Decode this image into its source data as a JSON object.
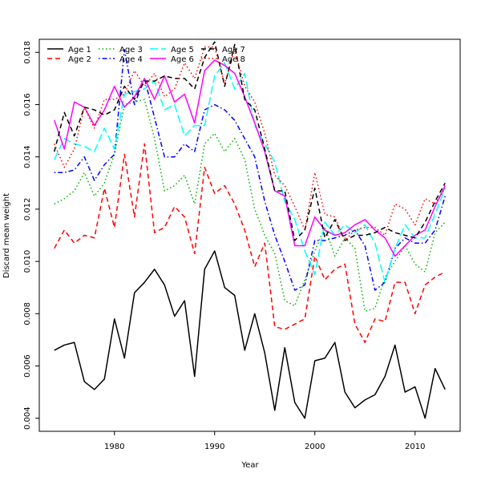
{
  "chart_data": {
    "type": "line",
    "title": "",
    "xlabel": "Year",
    "ylabel": "Discard mean weight",
    "xlim": [
      1972.5,
      2014.5
    ],
    "ylim": [
      0.0035,
      0.0185
    ],
    "x_ticks": [
      1980,
      1990,
      2000,
      2010
    ],
    "y_ticks": [
      0.004,
      0.006,
      0.008,
      0.01,
      0.012,
      0.014,
      0.016,
      0.018
    ],
    "y_tick_labels": [
      "0.004",
      "0.006",
      "0.008",
      "0.010",
      "0.012",
      "0.014",
      "0.016",
      "0.018"
    ],
    "grid": false,
    "legend_position": "top-left",
    "x": [
      1974,
      1975,
      1976,
      1977,
      1978,
      1979,
      1980,
      1981,
      1982,
      1983,
      1984,
      1985,
      1986,
      1987,
      1988,
      1989,
      1990,
      1991,
      1992,
      1993,
      1994,
      1995,
      1996,
      1997,
      1998,
      1999,
      2000,
      2001,
      2002,
      2003,
      2004,
      2005,
      2006,
      2007,
      2008,
      2009,
      2010,
      2011,
      2012,
      2013
    ],
    "series": [
      {
        "name": "Age 1",
        "color": "#000000",
        "dash": "solid",
        "width": 1.5,
        "values": [
          0.0066,
          0.0068,
          0.0069,
          0.0054,
          0.0051,
          0.0055,
          0.0078,
          0.0063,
          0.0088,
          0.0092,
          0.0097,
          0.0091,
          0.0079,
          0.0085,
          0.0056,
          0.0097,
          0.0104,
          0.009,
          0.0087,
          0.0066,
          0.008,
          0.0065,
          0.0043,
          0.0067,
          0.0046,
          0.004,
          0.0062,
          0.0063,
          0.0069,
          0.005,
          0.0044,
          0.0047,
          0.0049,
          0.0056,
          0.0068,
          0.005,
          0.0052,
          0.004,
          0.0059,
          0.0051
        ]
      },
      {
        "name": "Age 2",
        "color": "#ff0000",
        "dash": "dashed",
        "width": 1.5,
        "values": [
          0.0105,
          0.0112,
          0.0107,
          0.011,
          0.0109,
          0.0128,
          0.0113,
          0.0141,
          0.0117,
          0.0145,
          0.0111,
          0.0113,
          0.0121,
          0.0117,
          0.0103,
          0.0136,
          0.0126,
          0.0129,
          0.0122,
          0.0112,
          0.0098,
          0.0107,
          0.0075,
          0.0074,
          0.0076,
          0.0078,
          0.0102,
          0.0093,
          0.0097,
          0.0099,
          0.0076,
          0.0069,
          0.0078,
          0.0077,
          0.0092,
          0.0092,
          0.008,
          0.0091,
          0.0094,
          0.0096
        ]
      },
      {
        "name": "Age 3",
        "color": "#00b000",
        "dash": "dotted",
        "width": 1.5,
        "values": [
          0.0122,
          0.0124,
          0.0127,
          0.0134,
          0.0125,
          0.013,
          0.0141,
          0.016,
          0.0161,
          0.0162,
          0.0147,
          0.0127,
          0.0129,
          0.0133,
          0.0122,
          0.0145,
          0.0149,
          0.0142,
          0.0147,
          0.0139,
          0.012,
          0.011,
          0.0103,
          0.0085,
          0.0083,
          0.0093,
          0.0104,
          0.0113,
          0.0102,
          0.0109,
          0.0105,
          0.0081,
          0.0082,
          0.0094,
          0.01,
          0.0106,
          0.0099,
          0.0096,
          0.0111,
          0.0115
        ]
      },
      {
        "name": "Age 4",
        "color": "#0000ff",
        "dash": "dashdot",
        "width": 1.5,
        "values": [
          0.0134,
          0.0134,
          0.0135,
          0.014,
          0.0131,
          0.0137,
          0.0141,
          0.0181,
          0.016,
          0.017,
          0.0155,
          0.014,
          0.014,
          0.0145,
          0.0142,
          0.0158,
          0.016,
          0.0158,
          0.0154,
          0.0147,
          0.014,
          0.0123,
          0.011,
          0.01,
          0.0089,
          0.0091,
          0.0108,
          0.0108,
          0.0109,
          0.011,
          0.0112,
          0.0106,
          0.0089,
          0.0092,
          0.0105,
          0.0109,
          0.0107,
          0.0107,
          0.0112,
          0.0125
        ]
      },
      {
        "name": "Age 5",
        "color": "#00ffff",
        "dash": "longdash",
        "width": 1.5,
        "values": [
          0.0139,
          0.0147,
          0.0145,
          0.0144,
          0.0142,
          0.0151,
          0.0143,
          0.0164,
          0.0165,
          0.0166,
          0.0169,
          0.0158,
          0.016,
          0.0148,
          0.0152,
          0.0152,
          0.0171,
          0.0176,
          0.0166,
          0.0172,
          0.0152,
          0.0145,
          0.0138,
          0.0123,
          0.0116,
          0.0104,
          0.0095,
          0.0115,
          0.011,
          0.0114,
          0.0111,
          0.0114,
          0.0107,
          0.0092,
          0.0105,
          0.0114,
          0.0109,
          0.0109,
          0.0118,
          0.0128
        ]
      },
      {
        "name": "Age 6",
        "color": "#ff00ff",
        "dash": "solid",
        "width": 1.5,
        "values": [
          0.0154,
          0.0143,
          0.0161,
          0.0159,
          0.0152,
          0.0158,
          0.0167,
          0.0159,
          0.0163,
          0.017,
          0.0162,
          0.0171,
          0.0161,
          0.0164,
          0.0153,
          0.0173,
          0.0177,
          0.0175,
          0.0172,
          0.0163,
          0.0153,
          0.0142,
          0.0127,
          0.0125,
          0.0106,
          0.0106,
          0.0117,
          0.0112,
          0.011,
          0.0111,
          0.0114,
          0.0116,
          0.0112,
          0.0109,
          0.0102,
          0.0106,
          0.011,
          0.0112,
          0.0121,
          0.0129
        ]
      },
      {
        "name": "Age 7",
        "color": "#000000",
        "dash": "dashed",
        "width": 1.5,
        "values": [
          0.0142,
          0.0157,
          0.0148,
          0.0159,
          0.0158,
          0.0156,
          0.0158,
          0.0167,
          0.0162,
          0.0169,
          0.0169,
          0.0171,
          0.017,
          0.017,
          0.0166,
          0.0178,
          0.0184,
          0.0167,
          0.0183,
          0.0162,
          0.0158,
          0.0143,
          0.0127,
          0.0127,
          0.0108,
          0.0112,
          0.0128,
          0.0109,
          0.0116,
          0.0108,
          0.011,
          0.011,
          0.0111,
          0.0113,
          0.0111,
          0.011,
          0.0109,
          0.0115,
          0.0123,
          0.013
        ]
      },
      {
        "name": "Age 8",
        "color": "#ff0000",
        "dash": "dotted",
        "width": 1.5,
        "values": [
          0.0145,
          0.0136,
          0.0143,
          0.0159,
          0.0151,
          0.0162,
          0.0162,
          0.0164,
          0.0173,
          0.0167,
          0.0172,
          0.0163,
          0.0166,
          0.0176,
          0.017,
          0.0182,
          0.0182,
          0.0168,
          0.0181,
          0.0167,
          0.0161,
          0.0149,
          0.0133,
          0.0129,
          0.0121,
          0.0112,
          0.0134,
          0.0118,
          0.0117,
          0.0108,
          0.0112,
          0.0113,
          0.0113,
          0.011,
          0.0122,
          0.012,
          0.0114,
          0.0124,
          0.0122,
          0.0128
        ]
      }
    ]
  }
}
